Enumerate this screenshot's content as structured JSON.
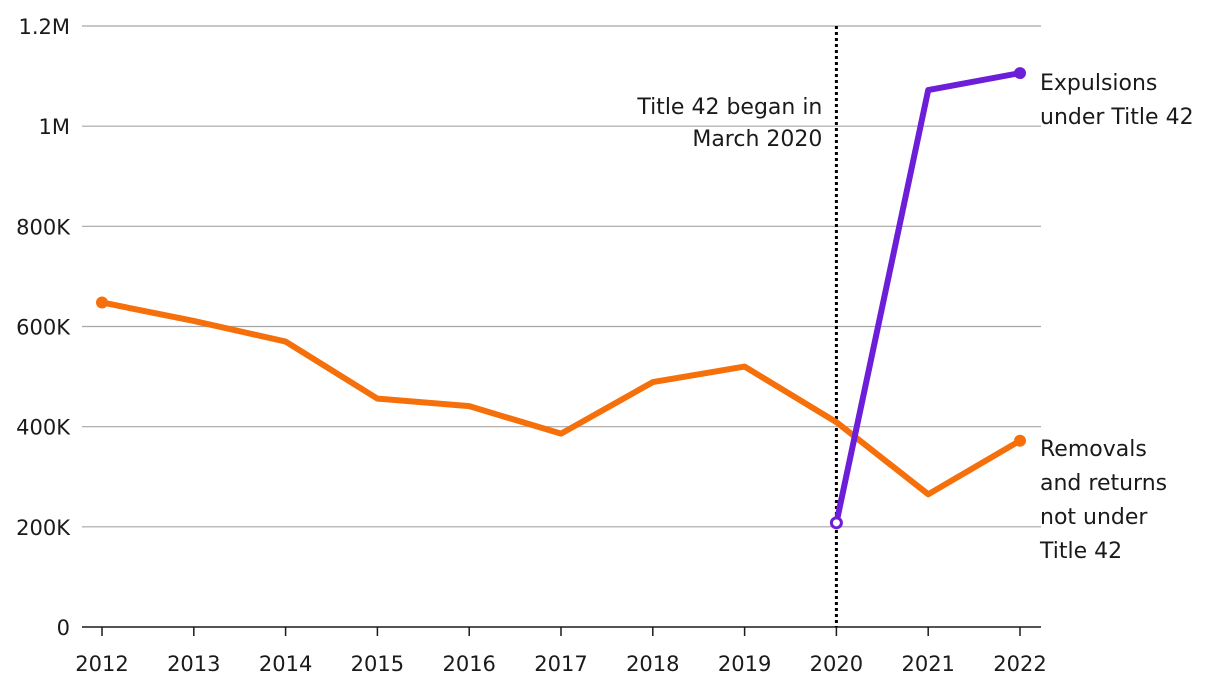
{
  "chart_data": {
    "type": "line",
    "title": "",
    "xlabel": "",
    "ylabel": "",
    "ylim": [
      0,
      1200000
    ],
    "y_ticks": [
      0,
      200000,
      400000,
      600000,
      800000,
      1000000,
      1200000
    ],
    "y_tick_labels": [
      "0",
      "200K",
      "400K",
      "600K",
      "800K",
      "1M",
      "1.2M"
    ],
    "categories": [
      "2012",
      "2013",
      "2014",
      "2015",
      "2016",
      "2017",
      "2018",
      "2019",
      "2020",
      "2021",
      "2022"
    ],
    "grid": true,
    "series": [
      {
        "name": "Removals and returns not under Title 42",
        "label_lines": [
          "Removals",
          "and returns",
          "not under",
          "Title 42"
        ],
        "color": "#f5700a",
        "values": [
          648000,
          611000,
          570000,
          456000,
          441000,
          386000,
          489000,
          520000,
          409000,
          265000,
          372000
        ]
      },
      {
        "name": "Expulsions under Title 42",
        "label_lines": [
          "Expulsions",
          "under Title 42"
        ],
        "color": "#6d1ed8",
        "values": [
          null,
          null,
          null,
          null,
          null,
          null,
          null,
          null,
          208000,
          1072000,
          1106000
        ]
      }
    ],
    "annotations": [
      {
        "text_lines": [
          "Title 42 began in",
          "March 2020"
        ],
        "x": "2020",
        "line_style": "dotted"
      }
    ]
  }
}
